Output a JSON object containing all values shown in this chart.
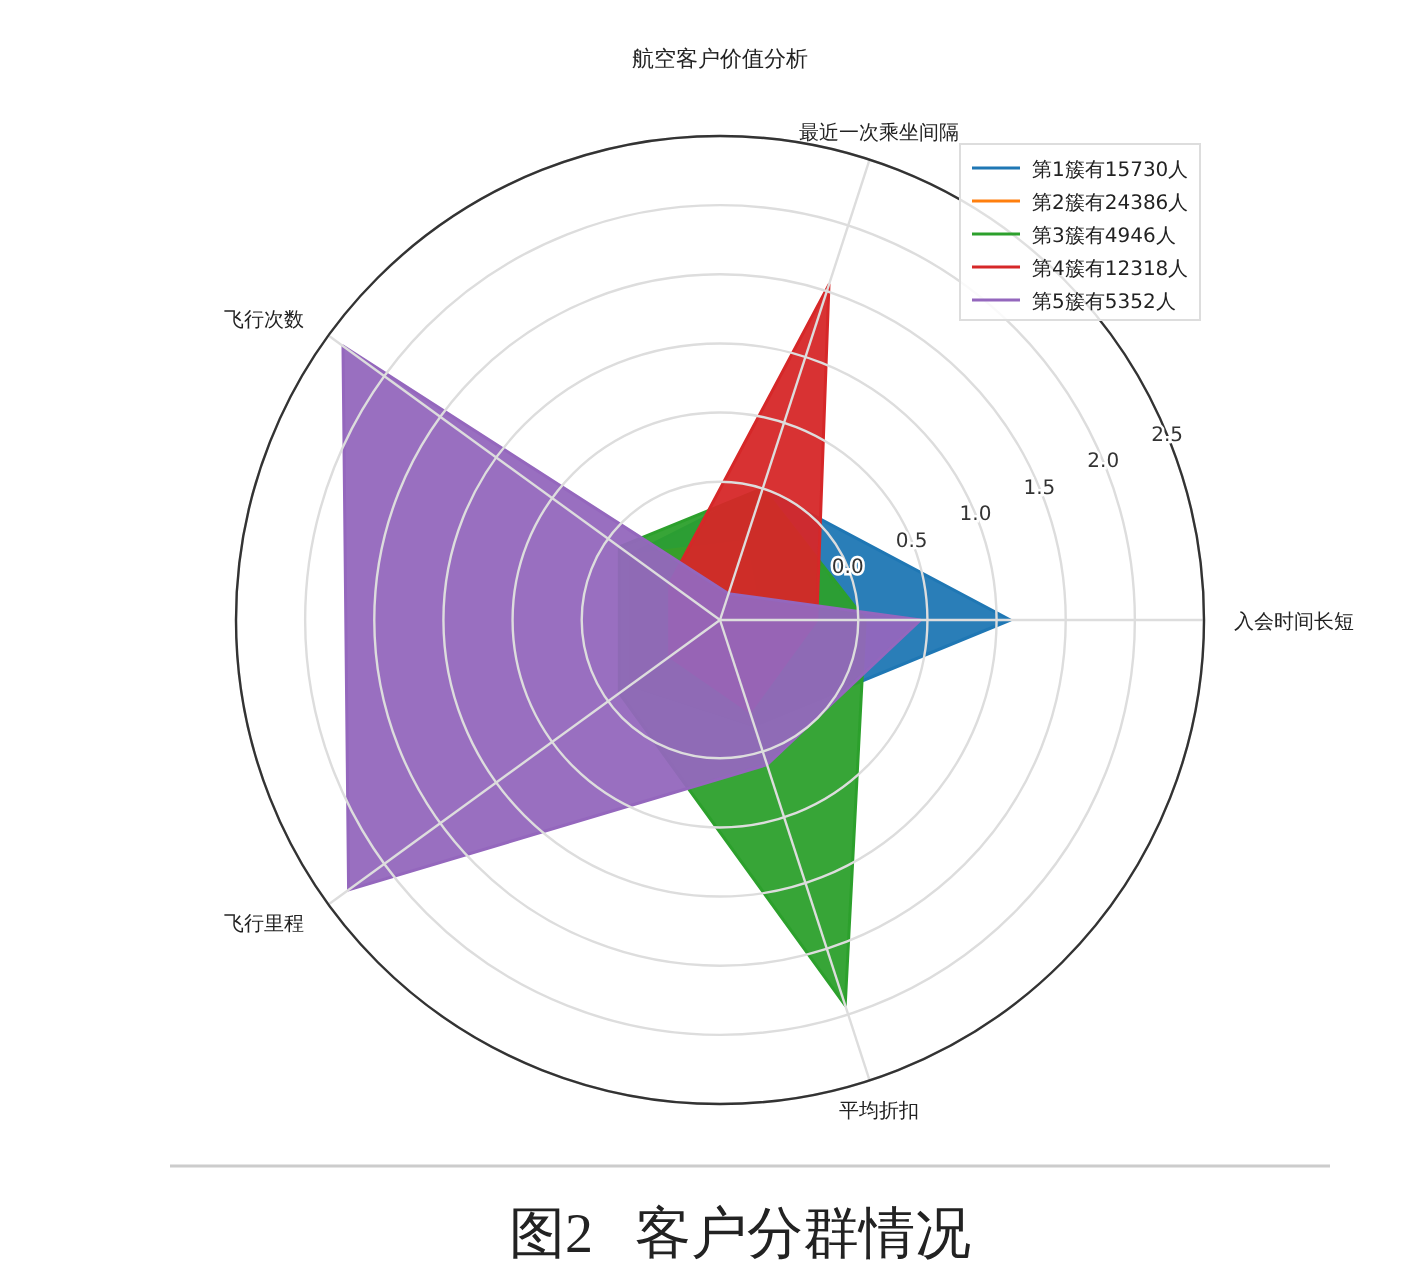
{
  "chart_data": {
    "type": "radar",
    "title": "航空客户价值分析",
    "categories": [
      "最近一次乘坐间隔",
      "入会时间长短",
      "平均折扣",
      "飞行里程",
      "飞行次数"
    ],
    "series": [
      {
        "name": "第1簇有15730人",
        "color": "#1f77b4",
        "values": [
          0.0,
          1.1,
          -0.2,
          -0.2,
          -0.2
        ]
      },
      {
        "name": "第2簇有24386人",
        "color": "#ff7f0e",
        "values": [
          -0.4,
          -0.7,
          -0.2,
          -0.2,
          -0.2
        ]
      },
      {
        "name": "第3簇有4946人",
        "color": "#2ca02c",
        "values": [
          0.0,
          0.05,
          1.93,
          -0.1,
          -0.1
        ]
      },
      {
        "name": "第4簇有12318人",
        "color": "#d62728",
        "values": [
          1.55,
          -0.3,
          -0.3,
          -0.55,
          -0.55
        ]
      },
      {
        "name": "第5簇有5352人",
        "color": "#9467bd",
        "values": [
          -0.8,
          0.45,
          0.1,
          2.32,
          2.37
        ]
      }
    ],
    "ylim": [
      -1,
      2.5
    ],
    "yticks": [
      {
        "value": 0,
        "label": "0.0"
      },
      0.5,
      {
        "value": 1,
        "label": "1.0"
      },
      1.5,
      {
        "value": 2,
        "label": "2.0"
      },
      2.5
    ],
    "grid": true,
    "legend": "top right",
    "annotations": [
      "图2   客户分群情况"
    ]
  }
}
